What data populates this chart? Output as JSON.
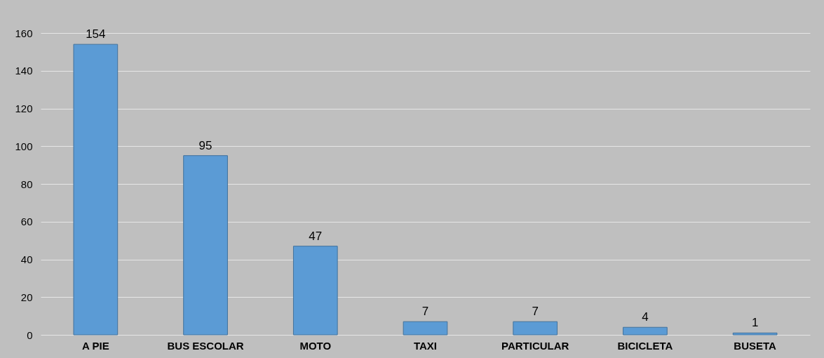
{
  "chart_data": {
    "type": "bar",
    "categories": [
      "A PIE",
      "BUS ESCOLAR",
      "MOTO",
      "TAXI",
      "PARTICULAR",
      "BICICLETA",
      "BUSETA"
    ],
    "values": [
      154,
      95,
      47,
      7,
      7,
      4,
      1
    ],
    "color": "#5b9bd5",
    "data_labels": true,
    "ylim": [
      0,
      160
    ],
    "yticks": [
      0,
      20,
      40,
      60,
      80,
      100,
      120,
      140,
      160
    ],
    "grid": "y"
  }
}
